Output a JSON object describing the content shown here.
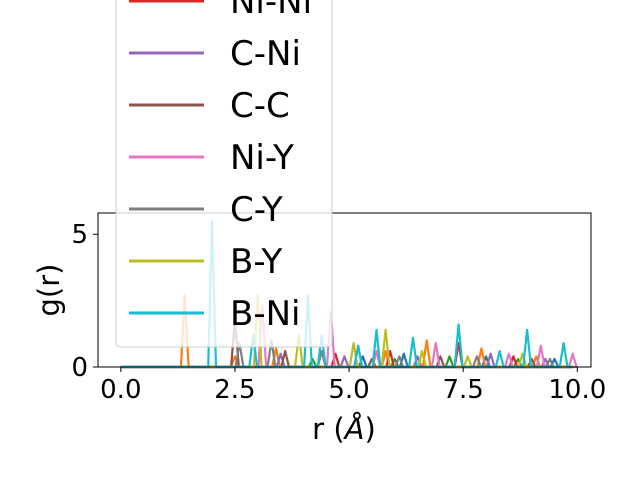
{
  "chart_data": {
    "type": "line",
    "xlabel_base": "r (",
    "xlabel_unit": "Å",
    "xlabel_close": ")",
    "ylabel": "g(r)",
    "xlim": [
      -0.5,
      10.3
    ],
    "ylim": [
      0,
      5.8
    ],
    "x_ticks": [
      0.0,
      2.5,
      5.0,
      7.5,
      10.0
    ],
    "x_tick_labels": [
      "0.0",
      "2.5",
      "5.0",
      "7.5",
      "10.0"
    ],
    "y_ticks": [
      0,
      5
    ],
    "y_tick_labels": [
      "0",
      "5"
    ],
    "grid": false,
    "legend_placement": "upper-left (extends above axes)",
    "series": [
      {
        "name": "Ni-Ni",
        "color": "#d62728",
        "peaks": [
          [
            4.7,
            0.5
          ],
          [
            5.9,
            0.6
          ],
          [
            7.4,
            0.9
          ],
          [
            8.6,
            0.4
          ]
        ]
      },
      {
        "name": "C-Ni",
        "color": "#9467bd",
        "peaks": [
          [
            3.5,
            0.5
          ],
          [
            4.9,
            0.4
          ],
          [
            6.5,
            0.4
          ],
          [
            8.1,
            0.5
          ],
          [
            9.3,
            0.3
          ]
        ]
      },
      {
        "name": "C-C",
        "color": "#8c564b",
        "peaks": [
          [
            2.5,
            1.8
          ],
          [
            3.6,
            0.6
          ],
          [
            5.5,
            0.3
          ],
          [
            7.0,
            0.4
          ],
          [
            9.0,
            0.3
          ]
        ]
      },
      {
        "name": "Ni-Y",
        "color": "#e377c2",
        "peaks": [
          [
            3.1,
            2.3
          ],
          [
            4.6,
            2.1
          ],
          [
            5.6,
            0.6
          ],
          [
            6.9,
            0.9
          ],
          [
            8.5,
            0.5
          ],
          [
            9.2,
            0.8
          ],
          [
            9.9,
            0.5
          ]
        ]
      },
      {
        "name": "C-Y",
        "color": "#7f7f7f",
        "peaks": [
          [
            2.6,
            0.9
          ],
          [
            3.3,
            1.0
          ],
          [
            4.4,
            0.6
          ],
          [
            6.1,
            0.4
          ],
          [
            7.8,
            0.4
          ],
          [
            9.4,
            0.3
          ]
        ]
      },
      {
        "name": "B-Y",
        "color": "#bcbd22",
        "peaks": [
          [
            3.0,
            2.7
          ],
          [
            3.9,
            1.2
          ],
          [
            5.1,
            0.9
          ],
          [
            5.8,
            1.4
          ],
          [
            6.6,
            0.6
          ],
          [
            7.6,
            0.4
          ],
          [
            8.8,
            0.5
          ]
        ]
      },
      {
        "name": "B-Ni",
        "color": "#17becf",
        "peaks": [
          [
            2.0,
            5.5
          ],
          [
            2.9,
            1.2
          ],
          [
            4.1,
            2.7
          ],
          [
            4.4,
            1.2
          ],
          [
            5.2,
            0.8
          ],
          [
            5.6,
            1.4
          ],
          [
            6.4,
            1.1
          ],
          [
            7.4,
            1.6
          ],
          [
            8.3,
            0.6
          ],
          [
            8.9,
            1.4
          ],
          [
            9.7,
            0.9
          ]
        ]
      }
    ],
    "unlisted_series": [
      {
        "color": "#1f77b4",
        "peaks": [
          [
            5.3,
            0.4
          ],
          [
            6.2,
            0.5
          ],
          [
            8.0,
            0.4
          ],
          [
            9.5,
            0.3
          ]
        ]
      },
      {
        "color": "#ff7f0e",
        "peaks": [
          [
            1.4,
            2.7
          ],
          [
            2.5,
            0.4
          ],
          [
            3.4,
            0.7
          ],
          [
            5.2,
            0.8
          ],
          [
            5.8,
            0.6
          ],
          [
            6.7,
            1.0
          ],
          [
            7.9,
            0.7
          ],
          [
            9.1,
            0.4
          ]
        ]
      },
      {
        "color": "#2ca02c",
        "peaks": [
          [
            4.2,
            0.3
          ],
          [
            6.0,
            0.3
          ],
          [
            7.2,
            0.4
          ],
          [
            8.7,
            0.3
          ]
        ]
      }
    ]
  }
}
